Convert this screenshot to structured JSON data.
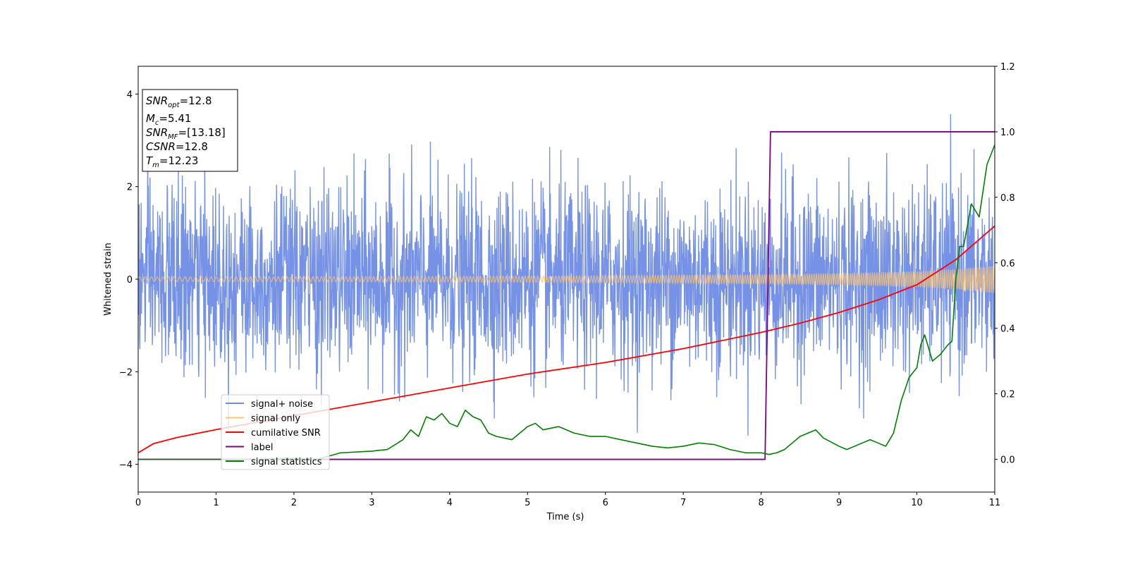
{
  "chart_data": {
    "type": "line",
    "xlabel": "Time (s)",
    "ylabel": "Whitened strain",
    "xlim": [
      0,
      11
    ],
    "ylim_left": [
      -4.6,
      4.6
    ],
    "ylim_right": [
      -0.1,
      1.2
    ],
    "x_ticks": [
      0,
      1,
      2,
      3,
      4,
      5,
      6,
      7,
      8,
      9,
      10,
      11
    ],
    "y_ticks_left": [
      -4,
      -2,
      0,
      2,
      4
    ],
    "y_ticks_right": [
      "0.0",
      "0.2",
      "0.4",
      "0.6",
      "0.8",
      "1.0",
      "1.2"
    ],
    "grid": false,
    "legend_position": "lower-left",
    "stats_box": {
      "snr_opt": {
        "var": "SNR",
        "sub": "opt",
        "value": "=12.8"
      },
      "mc": {
        "var": "M",
        "sub": "c",
        "value": "=5.41"
      },
      "snr_mf": {
        "var": "SNR",
        "sub": "MF",
        "value": "=[13.18]"
      },
      "csnr": {
        "var": "CSNR",
        "sub": "",
        "value": "=12.8"
      },
      "tm": {
        "var": "T",
        "sub": "m",
        "value": "=12.23"
      }
    },
    "series": [
      {
        "name": "signal+ noise",
        "color": "#6f8ce6",
        "axis": "left",
        "description_values": "white-noise strain, std ~1.0, range about -4.1 to 4.2, t from 0 to 11 s"
      },
      {
        "name": "signal only",
        "color": "#ffc46f",
        "axis": "left",
        "amplitude_envelope": {
          "x": [
            0,
            2,
            4,
            6,
            8,
            9,
            10,
            10.5,
            11
          ],
          "y": [
            0.05,
            0.055,
            0.06,
            0.075,
            0.1,
            0.125,
            0.17,
            0.22,
            0.3
          ]
        }
      },
      {
        "name": "cumilative SNR",
        "color": "#ff0000",
        "axis": "left",
        "x": [
          0,
          0.2,
          0.5,
          1,
          2,
          3,
          4,
          5,
          6,
          7,
          8,
          8.5,
          9,
          9.5,
          10,
          10.5,
          11
        ],
        "y": [
          -3.75,
          -3.55,
          -3.42,
          -3.25,
          -2.95,
          -2.65,
          -2.35,
          -2.05,
          -1.8,
          -1.5,
          -1.15,
          -0.95,
          -0.72,
          -0.45,
          -0.12,
          0.42,
          1.15
        ]
      },
      {
        "name": "label",
        "color": "#800080",
        "axis": "right",
        "x": [
          0,
          8.05,
          8.12,
          11
        ],
        "y": [
          0.0,
          0.0,
          1.0,
          1.0
        ]
      },
      {
        "name": "signal statistics",
        "color": "#008000",
        "axis": "right",
        "x": [
          0,
          0.5,
          1,
          1.5,
          2,
          2.3,
          2.6,
          3,
          3.2,
          3.4,
          3.5,
          3.6,
          3.7,
          3.8,
          3.9,
          4,
          4.1,
          4.2,
          4.3,
          4.4,
          4.5,
          4.6,
          4.8,
          5,
          5.1,
          5.2,
          5.4,
          5.6,
          5.8,
          6,
          6.2,
          6.4,
          6.6,
          6.8,
          7,
          7.2,
          7.4,
          7.6,
          7.8,
          8,
          8.1,
          8.2,
          8.3,
          8.4,
          8.5,
          8.6,
          8.7,
          8.8,
          9,
          9.1,
          9.2,
          9.4,
          9.5,
          9.6,
          9.65,
          9.7,
          9.8,
          9.9,
          10,
          10.05,
          10.1,
          10.2,
          10.3,
          10.4,
          10.45,
          10.5,
          10.55,
          10.6,
          10.7,
          10.8,
          10.9,
          11
        ],
        "y": [
          0.0,
          0.0,
          0.0,
          0.0,
          0.003,
          0.0,
          0.02,
          0.025,
          0.03,
          0.06,
          0.09,
          0.07,
          0.13,
          0.12,
          0.14,
          0.11,
          0.1,
          0.15,
          0.13,
          0.12,
          0.08,
          0.07,
          0.06,
          0.1,
          0.11,
          0.09,
          0.1,
          0.08,
          0.07,
          0.07,
          0.06,
          0.05,
          0.04,
          0.035,
          0.04,
          0.05,
          0.045,
          0.03,
          0.02,
          0.02,
          0.015,
          0.02,
          0.03,
          0.05,
          0.07,
          0.08,
          0.09,
          0.065,
          0.04,
          0.03,
          0.04,
          0.06,
          0.05,
          0.04,
          0.06,
          0.08,
          0.18,
          0.25,
          0.28,
          0.35,
          0.38,
          0.3,
          0.32,
          0.35,
          0.36,
          0.55,
          0.65,
          0.65,
          0.78,
          0.74,
          0.9,
          0.96
        ]
      }
    ]
  }
}
